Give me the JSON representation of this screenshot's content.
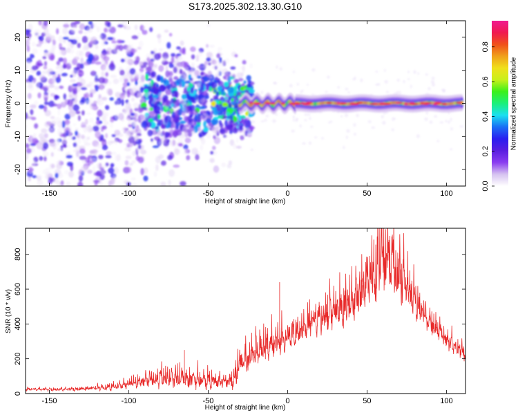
{
  "figure_title": "S173.2025.302.13.30.G10",
  "colors": {
    "snr_line": "#e82a2a",
    "frame": "#000000",
    "colorbar_stops": [
      "#ffffff",
      "#d6c2f0",
      "#8a3cf0",
      "#5a1ee0",
      "#2a1ef0",
      "#1a6ef5",
      "#1ae0f0",
      "#1af07a",
      "#3af01a",
      "#c8f01a",
      "#f0e01a",
      "#f0a01a",
      "#f0501a",
      "#f01a50",
      "#f01a90"
    ]
  },
  "chart_data": [
    {
      "id": "spectrogram",
      "type": "heatmap",
      "title": "S173.2025.302.13.30.G10",
      "xlabel": "Height of straight line (km)",
      "ylabel": "Frequency (Hz)",
      "xlim": [
        -165,
        112
      ],
      "ylim": [
        -25,
        25
      ],
      "xticks": [
        -150,
        -100,
        -50,
        0,
        50,
        100
      ],
      "yticks": [
        -20,
        -10,
        0,
        10,
        20
      ],
      "colorbar": {
        "label": "Normalized spectral amplitude",
        "range": [
          0.0,
          0.95
        ],
        "ticks": [
          0.0,
          0.2,
          0.4,
          0.6,
          0.8
        ]
      },
      "description_values": {
        "noise_region_x": [
          -165,
          -30
        ],
        "signal_onset_x": -30,
        "signal_frequency_hz": 0,
        "signal_x_range": [
          -30,
          110
        ]
      }
    },
    {
      "id": "snr",
      "type": "line",
      "xlabel": "Height of straight line (km)",
      "ylabel": "SNR (10 * v/v)",
      "xlim": [
        -165,
        112
      ],
      "ylim": [
        0,
        950
      ],
      "xticks": [
        -150,
        -100,
        -50,
        0,
        50,
        100
      ],
      "yticks": [
        0,
        200,
        400,
        600,
        800
      ],
      "series": [
        {
          "name": "SNR",
          "x": [
            -165,
            -150,
            -130,
            -110,
            -100,
            -90,
            -80,
            -70,
            -60,
            -50,
            -40,
            -35,
            -30,
            -25,
            -20,
            -10,
            0,
            10,
            20,
            30,
            40,
            50,
            55,
            60,
            65,
            70,
            80,
            90,
            100,
            112
          ],
          "y": [
            25,
            22,
            25,
            35,
            55,
            70,
            80,
            85,
            75,
            70,
            60,
            65,
            150,
            200,
            230,
            280,
            320,
            370,
            420,
            460,
            520,
            620,
            700,
            740,
            730,
            660,
            520,
            400,
            300,
            220
          ],
          "oscillation_amplitude": [
            8,
            8,
            10,
            20,
            25,
            40,
            50,
            60,
            55,
            45,
            40,
            50,
            90,
            100,
            90,
            90,
            80,
            90,
            100,
            110,
            120,
            160,
            200,
            220,
            200,
            160,
            100,
            70,
            50,
            40
          ]
        }
      ],
      "annotations": [
        {
          "x": -65,
          "y": 250,
          "text": ""
        },
        {
          "x": -5,
          "y": 640,
          "text": ""
        }
      ]
    }
  ]
}
